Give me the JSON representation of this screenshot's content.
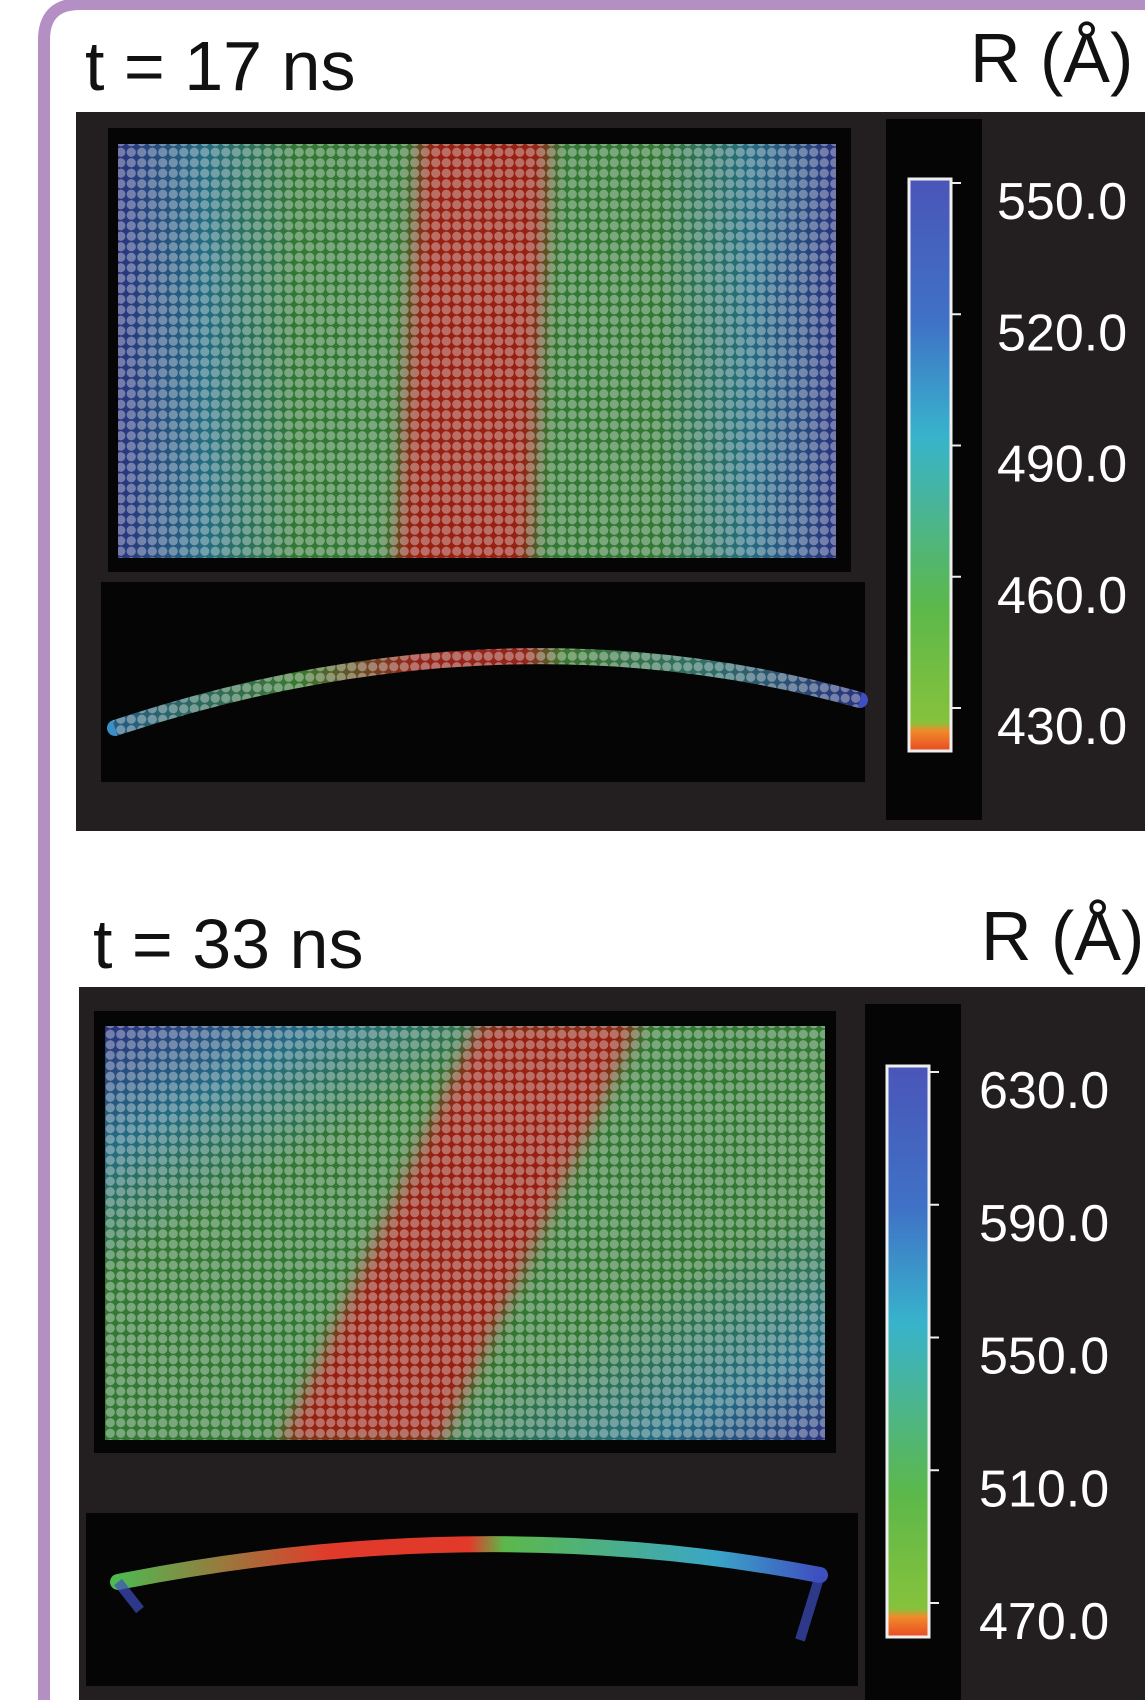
{
  "panels": [
    {
      "time_label": "t = 17 ns",
      "colorbar_title": "R (Å)",
      "ticks": [
        "550.0",
        "520.0",
        "490.0",
        "460.0",
        "430.0"
      ]
    },
    {
      "time_label": "t = 33 ns",
      "colorbar_title": "R (Å)",
      "ticks": [
        "630.0",
        "590.0",
        "550.0",
        "510.0",
        "470.0"
      ]
    }
  ]
}
